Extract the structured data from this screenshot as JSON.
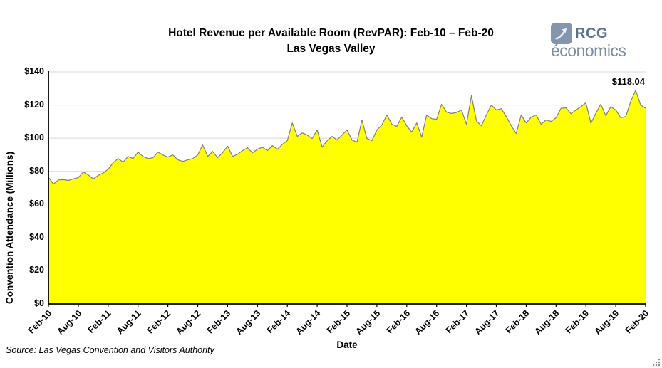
{
  "header": {
    "title_line1": "Hotel Revenue per Available Room (RevPAR): Feb-10 – Feb-20",
    "title_line2": "Las Vegas Valley",
    "logo": {
      "line1": "RCG",
      "line2": "économics",
      "icon": "growth-arrow-icon",
      "icon_bg_color": "#8496ad",
      "text_color_primary": "#5d7090",
      "text_color_secondary": "#7c8ca3"
    }
  },
  "footer": {
    "source": "Source: Las Vegas Convention and Visitors Authority"
  },
  "chart_data": {
    "type": "area",
    "title": "Hotel Revenue per Available Room (RevPAR): Feb-10 – Feb-20 Las Vegas Valley",
    "xlabel": "Date",
    "ylabel": "Convention Attendance (Millions)",
    "ylim": [
      0,
      140
    ],
    "grid": true,
    "legend": "none",
    "fill_color": "#ffff00",
    "line_color": "#7f7f7f",
    "grid_color": "#d9d9d9",
    "axis_color": "#000000",
    "y_ticks": [
      "$0",
      "$20",
      "$40",
      "$60",
      "$80",
      "$100",
      "$120",
      "$140"
    ],
    "x_ticks": [
      "Feb-10",
      "Aug-10",
      "Feb-11",
      "Aug-11",
      "Feb-12",
      "Aug-12",
      "Feb-13",
      "Aug-13",
      "Feb-14",
      "Aug-14",
      "Feb-15",
      "Aug-15",
      "Feb-16",
      "Aug-16",
      "Feb-17",
      "Aug-17",
      "Feb-18",
      "Aug-18",
      "Feb-19",
      "Aug-19",
      "Feb-20"
    ],
    "annotation": {
      "label": "$118.04",
      "x": "Feb-20",
      "value": 118.04
    },
    "x": [
      "Feb-10",
      "Mar-10",
      "Apr-10",
      "May-10",
      "Jun-10",
      "Jul-10",
      "Aug-10",
      "Sep-10",
      "Oct-10",
      "Nov-10",
      "Dec-10",
      "Jan-11",
      "Feb-11",
      "Mar-11",
      "Apr-11",
      "May-11",
      "Jun-11",
      "Jul-11",
      "Aug-11",
      "Sep-11",
      "Oct-11",
      "Nov-11",
      "Dec-11",
      "Jan-12",
      "Feb-12",
      "Mar-12",
      "Apr-12",
      "May-12",
      "Jun-12",
      "Jul-12",
      "Aug-12",
      "Sep-12",
      "Oct-12",
      "Nov-12",
      "Dec-12",
      "Jan-13",
      "Feb-13",
      "Mar-13",
      "Apr-13",
      "May-13",
      "Jun-13",
      "Jul-13",
      "Aug-13",
      "Sep-13",
      "Oct-13",
      "Nov-13",
      "Dec-13",
      "Jan-14",
      "Feb-14",
      "Mar-14",
      "Apr-14",
      "May-14",
      "Jun-14",
      "Jul-14",
      "Aug-14",
      "Sep-14",
      "Oct-14",
      "Nov-14",
      "Dec-14",
      "Jan-15",
      "Feb-15",
      "Mar-15",
      "Apr-15",
      "May-15",
      "Jun-15",
      "Jul-15",
      "Aug-15",
      "Sep-15",
      "Oct-15",
      "Nov-15",
      "Dec-15",
      "Jan-16",
      "Feb-16",
      "Mar-16",
      "Apr-16",
      "May-16",
      "Jun-16",
      "Jul-16",
      "Aug-16",
      "Sep-16",
      "Oct-16",
      "Nov-16",
      "Dec-16",
      "Jan-17",
      "Feb-17",
      "Mar-17",
      "Apr-17",
      "May-17",
      "Jun-17",
      "Jul-17",
      "Aug-17",
      "Sep-17",
      "Oct-17",
      "Nov-17",
      "Dec-17",
      "Jan-18",
      "Feb-18",
      "Mar-18",
      "Apr-18",
      "May-18",
      "Jun-18",
      "Jul-18",
      "Aug-18",
      "Sep-18",
      "Oct-18",
      "Nov-18",
      "Dec-18",
      "Jan-19",
      "Feb-19",
      "Mar-19",
      "Apr-19",
      "May-19",
      "Jun-19",
      "Jul-19",
      "Aug-19",
      "Sep-19",
      "Oct-19",
      "Nov-19",
      "Dec-19",
      "Jan-20",
      "Feb-20"
    ],
    "values": [
      76.5,
      72.3,
      74.8,
      75.0,
      74.5,
      75.5,
      76.2,
      79.6,
      77.8,
      75.4,
      77.5,
      79.0,
      81.3,
      85.2,
      87.7,
      85.6,
      89.0,
      87.7,
      91.6,
      89.0,
      87.7,
      88.2,
      91.6,
      89.9,
      88.6,
      89.9,
      86.9,
      86.0,
      86.9,
      87.7,
      89.9,
      95.9,
      89.0,
      92.0,
      88.2,
      91.2,
      95.2,
      89.0,
      90.3,
      92.5,
      94.2,
      91.2,
      93.3,
      94.6,
      92.5,
      95.5,
      93.3,
      96.3,
      98.5,
      109.2,
      101.1,
      103.2,
      101.9,
      99.8,
      104.9,
      94.6,
      98.5,
      101.1,
      98.9,
      101.9,
      105.0,
      98.9,
      97.6,
      111.0,
      99.8,
      98.5,
      104.9,
      108.0,
      114.0,
      108.4,
      107.1,
      112.7,
      107.5,
      103.7,
      109.2,
      100.6,
      114.0,
      111.8,
      111.4,
      120.4,
      115.7,
      114.9,
      115.5,
      117.0,
      108.4,
      125.6,
      110.5,
      107.5,
      114.0,
      120.0,
      117.0,
      117.8,
      113.0,
      107.5,
      102.8,
      114.0,
      109.2,
      112.7,
      114.0,
      108.4,
      111.0,
      110.1,
      112.3,
      118.0,
      118.3,
      114.8,
      117.0,
      119.0,
      121.3,
      109.0,
      115.0,
      120.5,
      113.5,
      119.0,
      117.0,
      112.4,
      113.0,
      122.0,
      129.0,
      120.0,
      118.04
    ]
  }
}
